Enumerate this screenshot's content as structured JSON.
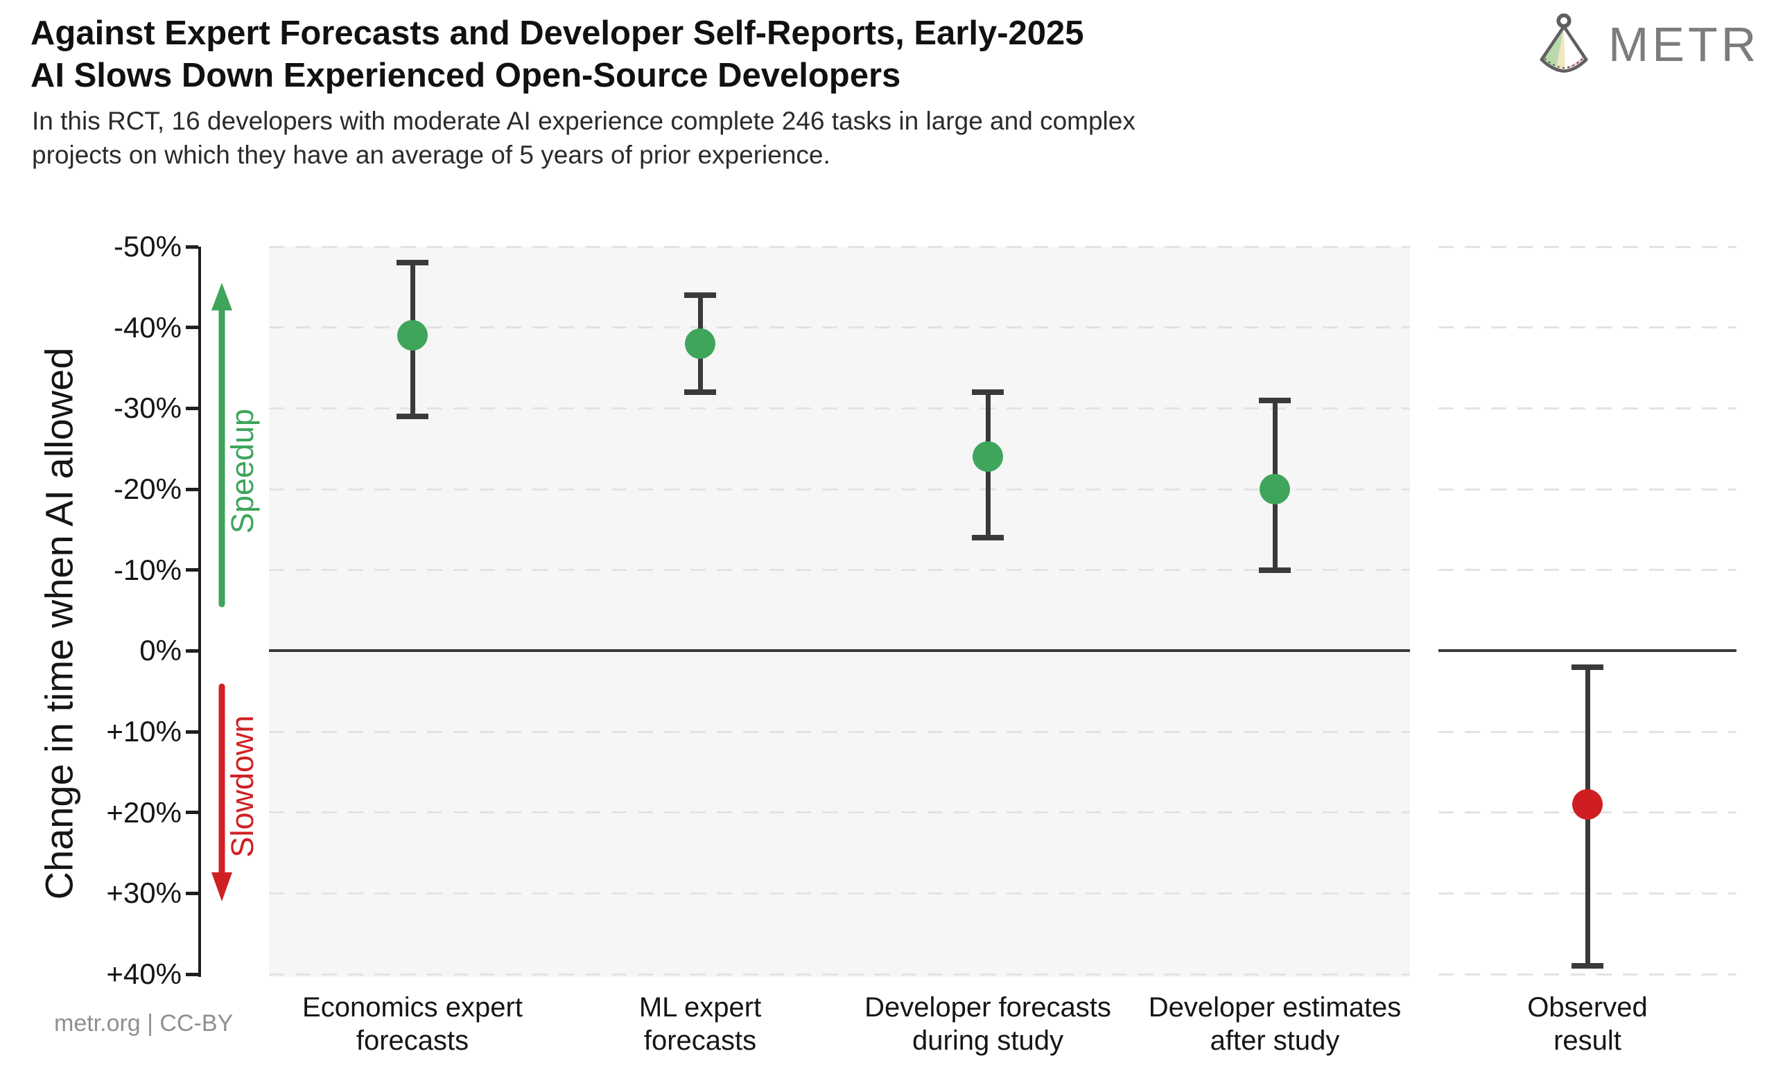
{
  "header": {
    "title_line1": "Against Expert Forecasts and Developer Self-Reports, Early-2025",
    "title_line2": "AI Slows Down Experienced Open-Source Developers",
    "subtitle": "In this RCT, 16 developers with moderate AI experience complete 246 tasks in large and complex projects on which they have an average of 5 years of prior experience.",
    "logo_text": "METR"
  },
  "footer": {
    "credit": "metr.org  |  CC-BY"
  },
  "colors": {
    "speedup_green": "#3ea55b",
    "slowdown_red": "#cf2124",
    "errorbar_dark": "#3a3a3a",
    "panel_background": "#f6f6f6",
    "gridline_gray": "#e3e3e3"
  },
  "chart_data": {
    "type": "scatter",
    "title": "Against Expert Forecasts and Developer Self-Reports, Early-2025 AI Slows Down Experienced Open-Source Developers",
    "ylabel": "Change in time when AI allowed",
    "units": "percent change in completion time when AI is allowed",
    "grid": true,
    "legend": false,
    "y_axis": {
      "inverted": true,
      "range_top_to_bottom": [
        -50,
        40
      ],
      "ticks": [
        -50,
        -40,
        -30,
        -20,
        -10,
        0,
        10,
        20,
        30,
        40
      ],
      "tick_labels": [
        "-50%",
        "-40%",
        "-30%",
        "-20%",
        "-10%",
        "0%",
        "+10%",
        "+20%",
        "+30%",
        "+40%"
      ]
    },
    "annotations": {
      "speedup_label": "Speedup",
      "slowdown_label": "Slowdown",
      "zero_line": 0
    },
    "series": [
      {
        "category": "Economics expert forecasts",
        "label_lines": [
          "Economics expert",
          "forecasts"
        ],
        "mean": -39,
        "ci": [
          -48,
          -29
        ],
        "color": "#3ea55b",
        "panel": 1
      },
      {
        "category": "ML expert forecasts",
        "label_lines": [
          "ML expert",
          "forecasts"
        ],
        "mean": -38,
        "ci": [
          -44,
          -32
        ],
        "color": "#3ea55b",
        "panel": 1
      },
      {
        "category": "Developer forecasts during study",
        "label_lines": [
          "Developer forecasts",
          "during study"
        ],
        "mean": -24,
        "ci": [
          -32,
          -14
        ],
        "color": "#3ea55b",
        "panel": 1
      },
      {
        "category": "Developer estimates after study",
        "label_lines": [
          "Developer estimates",
          "after study"
        ],
        "mean": -20,
        "ci": [
          -31,
          -10
        ],
        "color": "#3ea55b",
        "panel": 1
      },
      {
        "category": "Observed result",
        "label_lines": [
          "Observed",
          "result"
        ],
        "mean": 19,
        "ci": [
          2,
          39
        ],
        "color": "#cf1d21",
        "panel": 2
      }
    ]
  }
}
